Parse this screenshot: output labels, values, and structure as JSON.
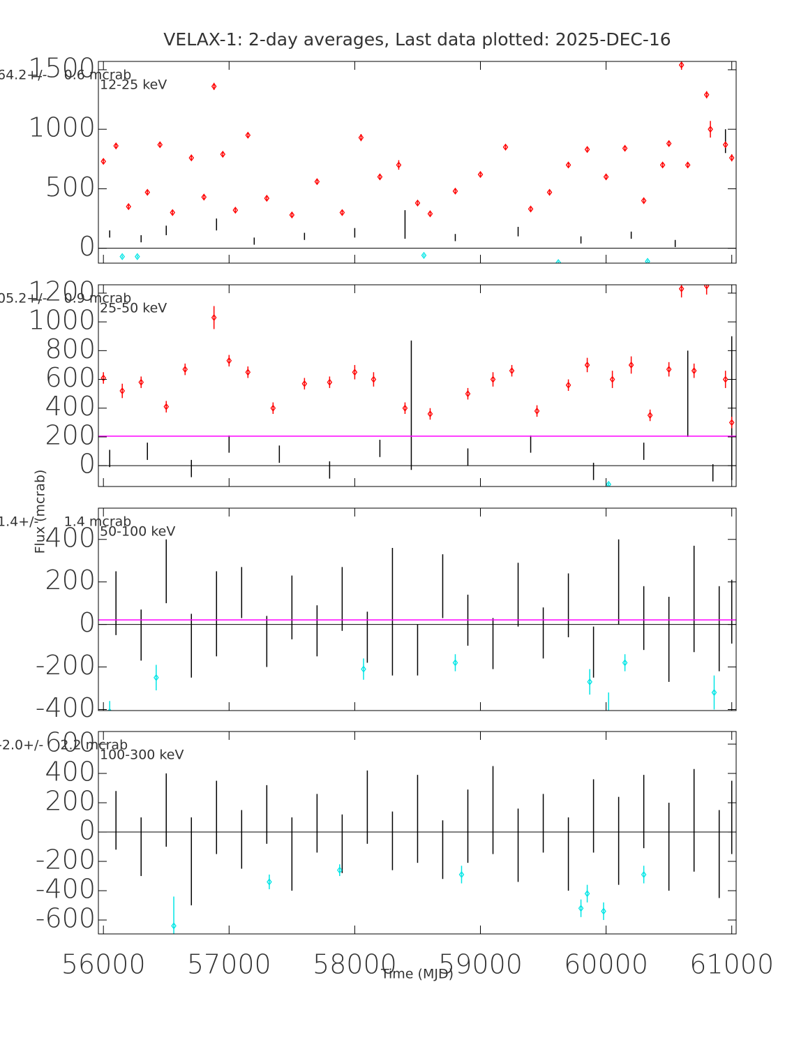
{
  "chart_data": [
    {
      "type": "errorbar",
      "title": "VELAX-1:  2-day averages,  Last data plotted: 2025-DEC-16",
      "annotations": [
        "64.2+/-    0.6 mcrab",
        "12-25 keV"
      ],
      "xlim": [
        55960,
        61035
      ],
      "xticks": [
        56000,
        57000,
        58000,
        59000,
        60000,
        61000
      ],
      "ylim": [
        -125,
        1570
      ],
      "yticks": [
        0,
        500,
        1000,
        1500
      ],
      "series": [
        {
          "color": "#000000",
          "x": [
            56050,
            56300,
            56500,
            56900,
            57200,
            57600,
            58000,
            58400,
            58800,
            59300,
            59800,
            60200,
            60550,
            60950
          ],
          "values": [
            120,
            80,
            150,
            200,
            60,
            100,
            130,
            200,
            90,
            140,
            70,
            110,
            40,
            900
          ],
          "errors": [
            30,
            30,
            40,
            50,
            30,
            30,
            40,
            120,
            30,
            40,
            30,
            30,
            30,
            100
          ]
        },
        {
          "color": "#ff0000",
          "x": [
            56000,
            56100,
            56200,
            56350,
            56450,
            56550,
            56700,
            56800,
            56880,
            56950,
            57050,
            57150,
            57300,
            57500,
            57700,
            57900,
            58050,
            58200,
            58350,
            58500,
            58600,
            58800,
            59000,
            59200,
            59400,
            59550,
            59700,
            59850,
            60000,
            60150,
            60300,
            60450,
            60500,
            60600,
            60650,
            60800,
            60830,
            60950,
            61000
          ],
          "values": [
            730,
            860,
            350,
            470,
            870,
            300,
            760,
            430,
            1360,
            790,
            320,
            950,
            420,
            280,
            560,
            300,
            930,
            600,
            700,
            380,
            290,
            480,
            620,
            850,
            330,
            470,
            700,
            830,
            600,
            840,
            400,
            700,
            880,
            1540,
            700,
            1290,
            1000,
            870,
            760
          ],
          "errors": [
            20,
            25,
            15,
            20,
            20,
            15,
            25,
            20,
            30,
            20,
            15,
            25,
            15,
            15,
            20,
            15,
            30,
            20,
            40,
            15,
            15,
            20,
            20,
            20,
            15,
            20,
            25,
            20,
            20,
            20,
            15,
            20,
            25,
            40,
            20,
            30,
            70,
            25,
            30
          ]
        },
        {
          "color": "#00e5e5",
          "x": [
            56150,
            56270,
            58550,
            59620,
            60330
          ],
          "values": [
            -70,
            -70,
            -60,
            -120,
            -110
          ],
          "errors": [
            10,
            10,
            10,
            10,
            10
          ]
        }
      ]
    },
    {
      "type": "errorbar",
      "annotations": [
        "05.2+/-    0.9 mcrab",
        "25-50 keV"
      ],
      "xlim": [
        55960,
        61035
      ],
      "xticks": [
        56000,
        57000,
        58000,
        59000,
        60000,
        61000
      ],
      "ylim": [
        -145,
        1258
      ],
      "yticks": [
        0,
        200,
        400,
        600,
        800,
        1000,
        1200
      ],
      "mean_line": 205.2,
      "mean_color": "#ff00ff",
      "series": [
        {
          "color": "#000000",
          "x": [
            56050,
            56350,
            56700,
            57000,
            57400,
            57800,
            58200,
            58450,
            58900,
            59400,
            59900,
            60300,
            60650,
            60850,
            61000
          ],
          "values": [
            50,
            100,
            -20,
            150,
            80,
            -30,
            120,
            420,
            60,
            150,
            -40,
            100,
            500,
            -50,
            400
          ],
          "errors": [
            60,
            60,
            60,
            60,
            60,
            60,
            60,
            450,
            60,
            60,
            60,
            60,
            300,
            60,
            500
          ]
        },
        {
          "color": "#ff0000",
          "x": [
            56000,
            56150,
            56300,
            56500,
            56650,
            56880,
            57000,
            57150,
            57350,
            57600,
            57800,
            58000,
            58150,
            58400,
            58600,
            58900,
            59100,
            59250,
            59450,
            59700,
            59850,
            60050,
            60200,
            60350,
            60500,
            60600,
            60700,
            60800,
            60950,
            61000
          ],
          "values": [
            610,
            520,
            580,
            410,
            670,
            1030,
            730,
            650,
            400,
            570,
            580,
            650,
            600,
            400,
            360,
            500,
            600,
            660,
            380,
            560,
            700,
            600,
            700,
            350,
            670,
            1230,
            660,
            1250,
            600,
            300
          ],
          "errors": [
            40,
            50,
            40,
            40,
            40,
            80,
            40,
            40,
            40,
            40,
            40,
            50,
            50,
            40,
            40,
            40,
            50,
            40,
            40,
            40,
            50,
            60,
            60,
            40,
            50,
            60,
            50,
            60,
            60,
            40
          ]
        },
        {
          "color": "#00e5e5",
          "x": [
            60020
          ],
          "values": [
            -130
          ],
          "errors": [
            10
          ]
        }
      ]
    },
    {
      "type": "errorbar",
      "annotations": [
        "1.4+/-      1.4 mcrab",
        "50-100 keV"
      ],
      "ylabel": "Flux (mcrab)",
      "xlim": [
        55960,
        61035
      ],
      "xticks": [
        56000,
        57000,
        58000,
        59000,
        60000,
        61000
      ],
      "ylim": [
        -405,
        547
      ],
      "yticks": [
        -400,
        -200,
        0,
        200,
        400
      ],
      "mean_line": 21.4,
      "mean_color": "#ff00ff",
      "series": [
        {
          "color": "#000000",
          "x": [
            56100,
            56300,
            56500,
            56700,
            56900,
            57100,
            57300,
            57500,
            57700,
            57900,
            58100,
            58300,
            58500,
            58700,
            58900,
            59100,
            59300,
            59500,
            59700,
            59900,
            60100,
            60300,
            60500,
            60700,
            60900,
            61000
          ],
          "values": [
            100,
            -50,
            250,
            -100,
            50,
            150,
            -80,
            80,
            -30,
            120,
            -60,
            60,
            -120,
            180,
            20,
            -90,
            140,
            -40,
            90,
            -130,
            200,
            30,
            -70,
            120,
            -20,
            60
          ],
          "errors": [
            150,
            120,
            150,
            150,
            200,
            120,
            120,
            150,
            120,
            150,
            120,
            300,
            120,
            150,
            120,
            120,
            150,
            120,
            150,
            120,
            200,
            150,
            200,
            250,
            200,
            150
          ]
        },
        {
          "color": "#00e5e5",
          "x": [
            56050,
            56420,
            58070,
            58800,
            59870,
            60020,
            60150,
            60860
          ],
          "values": [
            -410,
            -250,
            -210,
            -180,
            -270,
            -420,
            -180,
            -320
          ],
          "errors": [
            50,
            60,
            50,
            40,
            60,
            100,
            40,
            80
          ]
        }
      ]
    },
    {
      "type": "errorbar",
      "annotations": [
        "-2.0+/-    2.2 mcrab",
        "100-300 keV"
      ],
      "xlabel": "Time (MJD)",
      "xlim": [
        55960,
        61035
      ],
      "xticks": [
        56000,
        57000,
        58000,
        59000,
        60000,
        61000
      ],
      "ylim": [
        -695,
        686
      ],
      "yticks": [
        -600,
        -400,
        -200,
        0,
        200,
        400,
        600
      ],
      "series": [
        {
          "color": "#000000",
          "x": [
            56100,
            56300,
            56500,
            56700,
            56900,
            57100,
            57300,
            57500,
            57700,
            57900,
            58100,
            58300,
            58500,
            58700,
            58900,
            59100,
            59300,
            59500,
            59700,
            59900,
            60100,
            60300,
            60500,
            60700,
            60900,
            61000
          ],
          "values": [
            80,
            -100,
            150,
            -200,
            100,
            -50,
            120,
            -150,
            60,
            -80,
            170,
            -60,
            90,
            -120,
            40,
            150,
            -90,
            60,
            -150,
            110,
            -60,
            140,
            -100,
            80,
            -150,
            100
          ],
          "errors": [
            200,
            200,
            250,
            300,
            250,
            200,
            200,
            250,
            200,
            200,
            250,
            200,
            300,
            200,
            250,
            300,
            250,
            200,
            250,
            250,
            300,
            250,
            300,
            350,
            300,
            250
          ]
        },
        {
          "color": "#00e5e5",
          "x": [
            56560,
            57320,
            57880,
            58850,
            59800,
            59850,
            59980,
            60300
          ],
          "values": [
            -640,
            -340,
            -260,
            -290,
            -520,
            -420,
            -540,
            -290
          ],
          "errors": [
            200,
            50,
            40,
            60,
            60,
            60,
            60,
            60
          ]
        }
      ]
    }
  ]
}
